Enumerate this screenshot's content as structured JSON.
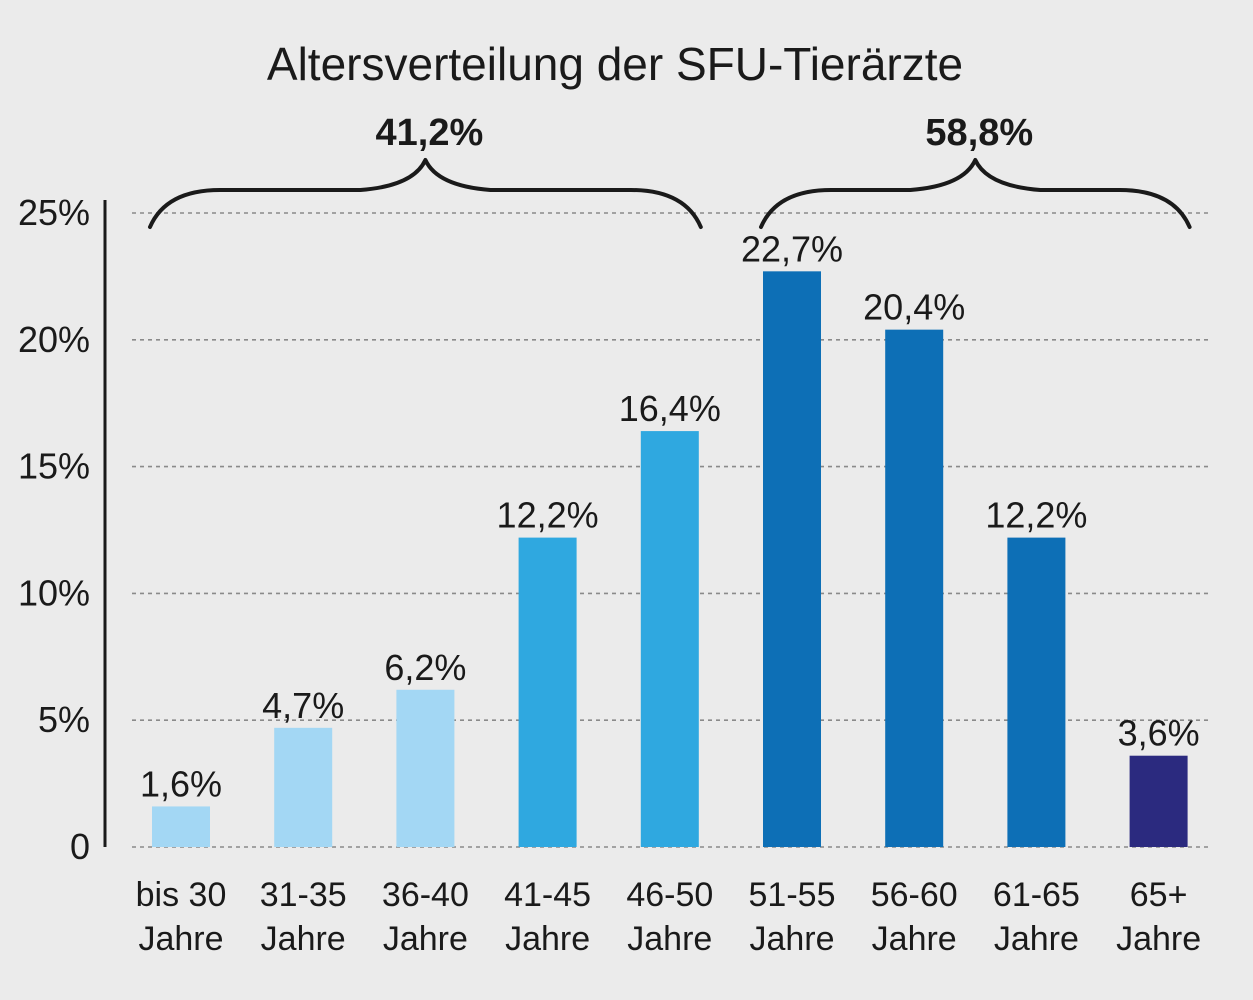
{
  "chart_data": {
    "type": "bar",
    "title": "Altersverteilung der SFU-Tierärzte",
    "categories": [
      [
        "bis 30",
        "Jahre"
      ],
      [
        "31-35",
        "Jahre"
      ],
      [
        "36-40",
        "Jahre"
      ],
      [
        "41-45",
        "Jahre"
      ],
      [
        "46-50",
        "Jahre"
      ],
      [
        "51-55",
        "Jahre"
      ],
      [
        "56-60",
        "Jahre"
      ],
      [
        "61-65",
        "Jahre"
      ],
      [
        "65+",
        "Jahre"
      ]
    ],
    "values": [
      1.6,
      4.7,
      6.2,
      12.2,
      16.4,
      22.7,
      20.4,
      12.2,
      3.6
    ],
    "value_labels": [
      "1,6%",
      "4,7%",
      "6,2%",
      "12,2%",
      "16,4%",
      "22,7%",
      "20,4%",
      "12,2%",
      "3,6%"
    ],
    "bar_colors": [
      "#a3d7f4",
      "#a3d7f4",
      "#a3d7f4",
      "#2fa8e0",
      "#2fa8e0",
      "#0d6fb6",
      "#0d6fb6",
      "#0d6fb6",
      "#2b2a7f"
    ],
    "ylim": [
      0,
      25
    ],
    "yticks": [
      0,
      5,
      10,
      15,
      20,
      25
    ],
    "ytick_labels": [
      "0",
      "5%",
      "10%",
      "15%",
      "20%",
      "25%"
    ],
    "grid": true,
    "xlabel": "",
    "ylabel": "",
    "groups": [
      {
        "label": "41,2%",
        "from": 0,
        "to": 4
      },
      {
        "label": "58,8%",
        "from": 5,
        "to": 8
      }
    ]
  }
}
